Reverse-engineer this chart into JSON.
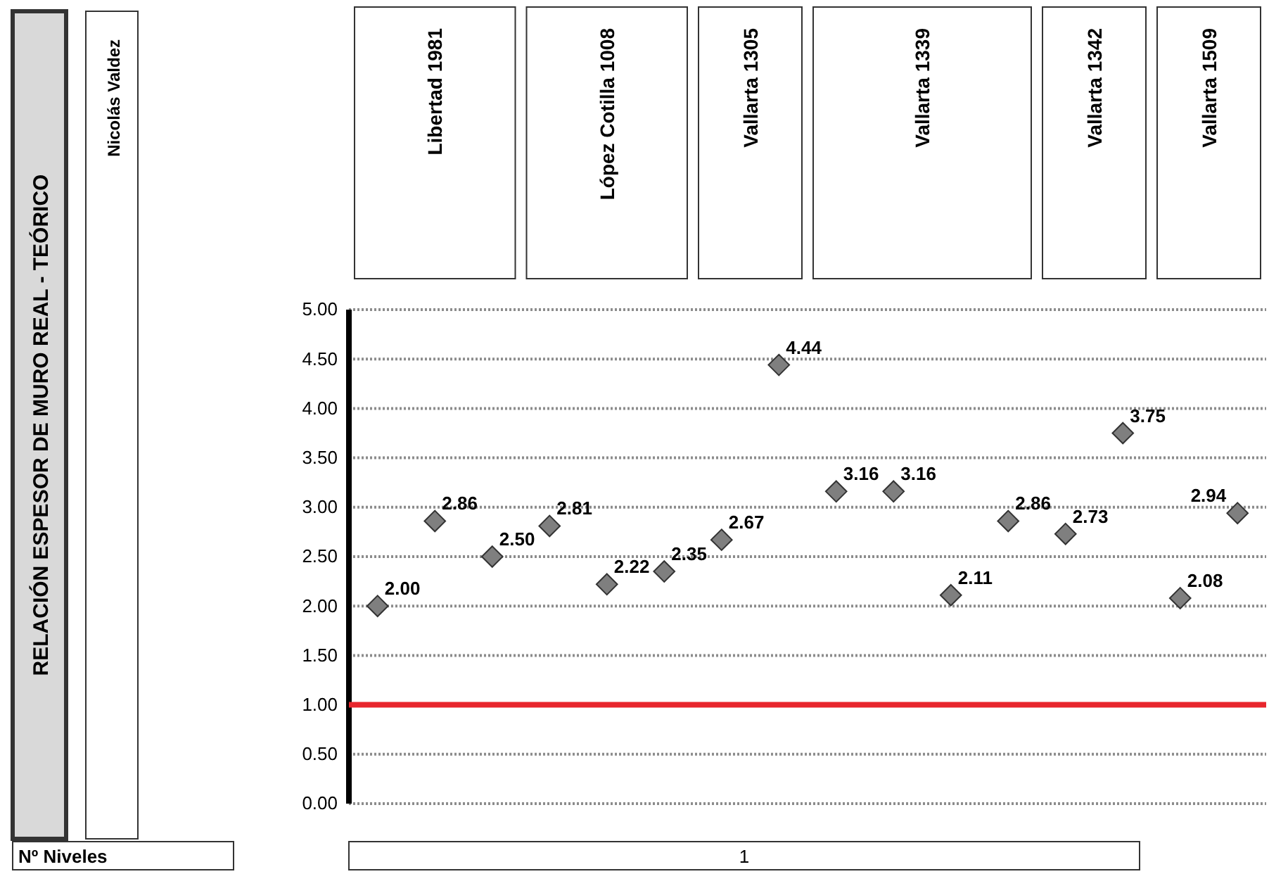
{
  "chart_data": {
    "type": "scatter",
    "categories": [
      null,
      null,
      null,
      null,
      null,
      null,
      null,
      null,
      null,
      null,
      null,
      null,
      null,
      null,
      null,
      null
    ],
    "series": [
      {
        "color": "#7f7f7f",
        "values": [
          2.0,
          2.86,
          2.5,
          2.81,
          2.22,
          2.35,
          2.67,
          4.44,
          3.16,
          3.16,
          2.11,
          2.86,
          2.73,
          3.75,
          2.08,
          2.94
        ],
        "value_labels": [
          "2.00",
          "2.86",
          "2.50",
          "2.81",
          "2.22",
          "2.35",
          "2.67",
          "4.44",
          "3.16",
          "3.16",
          "2.11",
          "2.86",
          "2.73",
          "3.75",
          "2.08",
          "2.94"
        ]
      }
    ],
    "ylim": [
      0,
      5
    ],
    "yticks": [
      {
        "value": 0,
        "label": "0.00"
      },
      {
        "value": 0.5,
        "label": "0.50"
      },
      {
        "value": 1,
        "label": "1.00"
      },
      {
        "value": 1.5,
        "label": "1.50"
      },
      {
        "value": 2,
        "label": "2.00"
      },
      {
        "value": 2.5,
        "label": "2.50"
      },
      {
        "value": 3,
        "label": "3.00"
      },
      {
        "value": 3.5,
        "label": "3.50"
      },
      {
        "value": 4,
        "label": "4.00"
      },
      {
        "value": 4.5,
        "label": "4.50"
      },
      {
        "value": 5,
        "label": "5.00"
      }
    ],
    "grid": "y",
    "marker": "diamond",
    "ref_lines": [
      {
        "axis": "y",
        "value": 1,
        "color": "#e8262d"
      }
    ],
    "annotations": [
      "RELACIÓN ESPESOR DE MURO REAL - TEÓRICO",
      "Nicolás Valdez",
      "Libertad 1981",
      "López Cotilla 1008",
      "Vallarta 1305",
      "Vallarta 1339",
      "Vallarta  1342",
      "Vallarta 1509",
      "Nº Niveles",
      "1"
    ]
  }
}
